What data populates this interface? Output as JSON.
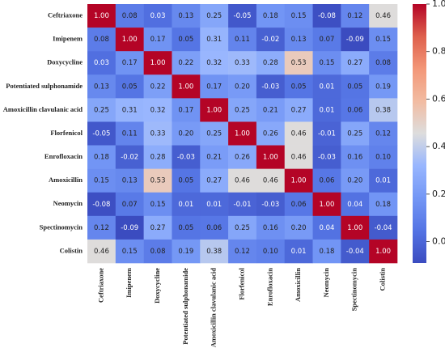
{
  "chart_data": {
    "type": "heatmap",
    "rows": [
      "Ceftriaxone",
      "Imipenem",
      "Doxycycline",
      "Potentiated sulphonamide",
      "Amoxicillin clavulanic acid",
      "Florfenicol",
      "Enrofloxacin",
      "Amoxicillin",
      "Neomycin",
      "Spectinomycin",
      "Colistin"
    ],
    "columns": [
      "Ceftriaxone",
      "Imipenem",
      "Doxycycline",
      "Potentiated sulphonamide",
      "Amoxicillin clavulanic acid",
      "Florfenicol",
      "Enrofloxacin",
      "Amoxicillin",
      "Neomycin",
      "Spectinomycin",
      "Colistin"
    ],
    "values": [
      [
        1.0,
        0.08,
        0.03,
        0.13,
        0.25,
        -0.05,
        0.18,
        0.15,
        -0.08,
        0.12,
        0.46
      ],
      [
        0.08,
        1.0,
        0.17,
        0.05,
        0.31,
        0.11,
        -0.02,
        0.13,
        0.07,
        -0.09,
        0.15
      ],
      [
        0.03,
        0.17,
        1.0,
        0.22,
        0.32,
        0.33,
        0.28,
        0.53,
        0.15,
        0.27,
        0.08
      ],
      [
        0.13,
        0.05,
        0.22,
        1.0,
        0.17,
        0.2,
        -0.03,
        0.05,
        0.01,
        0.05,
        0.19
      ],
      [
        0.25,
        0.31,
        0.32,
        0.17,
        1.0,
        0.25,
        0.21,
        0.27,
        0.01,
        0.06,
        0.38
      ],
      [
        -0.05,
        0.11,
        0.33,
        0.2,
        0.25,
        1.0,
        0.26,
        0.46,
        -0.01,
        0.25,
        0.12
      ],
      [
        0.18,
        -0.02,
        0.28,
        -0.03,
        0.21,
        0.26,
        1.0,
        0.46,
        -0.03,
        0.16,
        0.1
      ],
      [
        0.15,
        0.13,
        0.53,
        0.05,
        0.27,
        0.46,
        0.46,
        1.0,
        0.06,
        0.2,
        0.01
      ],
      [
        -0.08,
        0.07,
        0.15,
        0.01,
        0.01,
        -0.01,
        -0.03,
        0.06,
        1.0,
        0.04,
        0.18
      ],
      [
        0.12,
        -0.09,
        0.27,
        0.05,
        0.06,
        0.25,
        0.16,
        0.2,
        0.04,
        1.0,
        -0.04
      ],
      [
        0.46,
        0.15,
        0.08,
        0.19,
        0.38,
        0.12,
        0.1,
        0.01,
        0.18,
        -0.04,
        1.0
      ]
    ],
    "value_labels": [
      [
        "1.00",
        "0.08",
        "0.03",
        "0.13",
        "0.25",
        "-0.05",
        "0.18",
        "0.15",
        "-0.08",
        "0.12",
        "0.46"
      ],
      [
        "0.08",
        "1.00",
        "0.17",
        "0.05",
        "0.31",
        "0.11",
        "-0.02",
        "0.13",
        "0.07",
        "-0.09",
        "0.15"
      ],
      [
        "0.03",
        "0.17",
        "1.00",
        "0.22",
        "0.32",
        "0.33",
        "0.28",
        "0.53",
        "0.15",
        "0.27",
        "0.08"
      ],
      [
        "0.13",
        "0.05",
        "0.22",
        "1.00",
        "0.17",
        "0.20",
        "-0.03",
        "0.05",
        "0.01",
        "0.05",
        "0.19"
      ],
      [
        "0.25",
        "0.31",
        "0.32",
        "0.17",
        "1.00",
        "0.25",
        "0.21",
        "0.27",
        "0.01",
        "0.06",
        "0.38"
      ],
      [
        "-0.05",
        "0.11",
        "0.33",
        "0.20",
        "0.25",
        "1.00",
        "0.26",
        "0.46",
        "-0.01",
        "0.25",
        "0.12"
      ],
      [
        "0.18",
        "-0.02",
        "0.28",
        "-0.03",
        "0.21",
        "0.26",
        "1.00",
        "0.46",
        "-0.03",
        "0.16",
        "0.10"
      ],
      [
        "0.15",
        "0.13",
        "0.53",
        "0.05",
        "0.27",
        "0.46",
        "0.46",
        "1.00",
        "0.06",
        "0.20",
        "0.01"
      ],
      [
        "-0.08",
        "0.07",
        "0.15",
        "0.01",
        "0.01",
        "-0.01",
        "-0.03",
        "0.06",
        "1.00",
        "0.04",
        "0.18"
      ],
      [
        "0.12",
        "-0.09",
        "0.27",
        "0.05",
        "0.06",
        "0.25",
        "0.16",
        "0.20",
        "0.04",
        "1.00",
        "-0.04"
      ],
      [
        "0.46",
        "0.15",
        "0.08",
        "0.19",
        "0.38",
        "0.12",
        "0.10",
        "0.01",
        "0.18",
        "-0.04",
        "1.00"
      ]
    ],
    "colormap": "coolwarm",
    "clim": [
      -0.09,
      1.0
    ],
    "cticks": [
      {
        "value": 0,
        "label": "0.0"
      },
      {
        "value": 0.2,
        "label": "0.2"
      },
      {
        "value": 0.4,
        "label": "0.4"
      },
      {
        "value": 0.6,
        "label": "0.6"
      },
      {
        "value": 0.8,
        "label": "0.8"
      },
      {
        "value": 1.0,
        "label": "1.0"
      }
    ]
  }
}
